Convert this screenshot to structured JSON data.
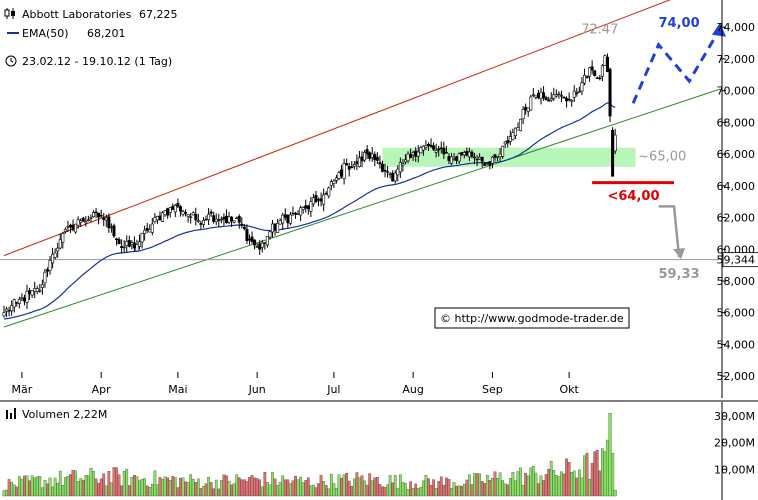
{
  "header": {
    "instrument_name": "Abbott Laboratories",
    "instrument_value": "67,225",
    "ema_label": "EMA(50)",
    "ema_value": "68,201",
    "period": "23.02.12 - 19.10.12 (1 Tag)"
  },
  "volume_panel": {
    "label": "Volumen 2,22M",
    "ticks": [
      {
        "label": "30,00M",
        "value": 30
      },
      {
        "label": "20,00M",
        "value": 20
      },
      {
        "label": "10,00M",
        "value": 10
      }
    ]
  },
  "watermark": "© http://www.godmode-trader.de",
  "annotations": {
    "high_label": "72.47",
    "target_label": "74,00",
    "support_label": "~65,00",
    "trigger_label": "<64,00",
    "downside_target": "59,33",
    "last_price_tag": "59,344"
  },
  "colors": {
    "up_candle": "#ffffff",
    "down_candle": "#000000",
    "ema": "#1a2ea0",
    "upper_channel": "#cc2200",
    "lower_channel": "#2a8a2a",
    "support_zone": "#b8f5b8",
    "volume_up": "#88e060",
    "volume_down": "#e07070",
    "target_arrow": "#1f3fe0",
    "trigger_line": "#e00000",
    "downside_arrow": "#999999"
  },
  "chart_data": {
    "type": "candlestick",
    "y_ticks": [
      {
        "label": "52,000",
        "value": 52
      },
      {
        "label": "54,000",
        "value": 54
      },
      {
        "label": "56,000",
        "value": 56
      },
      {
        "label": "58,000",
        "value": 58
      },
      {
        "label": "60,000",
        "value": 60
      },
      {
        "label": "62,000",
        "value": 62
      },
      {
        "label": "64,000",
        "value": 64
      },
      {
        "label": "66,000",
        "value": 66
      },
      {
        "label": "68,000",
        "value": 68
      },
      {
        "label": "70,000",
        "value": 70
      },
      {
        "label": "72,000",
        "value": 72
      },
      {
        "label": "74,000",
        "value": 74
      }
    ],
    "ylim": [
      51,
      75.4
    ],
    "x_months": [
      {
        "label": "Mär",
        "day": 7
      },
      {
        "label": "Apr",
        "day": 38
      },
      {
        "label": "Mai",
        "day": 68
      },
      {
        "label": "Jun",
        "day": 99
      },
      {
        "label": "Jul",
        "day": 129
      },
      {
        "label": "Aug",
        "day": 160
      },
      {
        "label": "Sep",
        "day": 191
      },
      {
        "label": "Okt",
        "day": 221
      }
    ],
    "x_range_days": [
      0,
      239
    ],
    "close_anchors": [
      [
        0,
        56.0
      ],
      [
        5,
        56.6
      ],
      [
        10,
        57.2
      ],
      [
        14,
        57.4
      ],
      [
        18,
        59.3
      ],
      [
        22,
        60.6
      ],
      [
        26,
        61.4
      ],
      [
        30,
        61.8
      ],
      [
        34,
        62.0
      ],
      [
        38,
        62.1
      ],
      [
        42,
        61.4
      ],
      [
        46,
        60.1
      ],
      [
        52,
        60.3
      ],
      [
        56,
        61.2
      ],
      [
        62,
        62.3
      ],
      [
        68,
        62.7
      ],
      [
        72,
        62.2
      ],
      [
        76,
        61.8
      ],
      [
        80,
        62.2
      ],
      [
        86,
        61.9
      ],
      [
        92,
        61.7
      ],
      [
        96,
        60.6
      ],
      [
        100,
        60.0
      ],
      [
        104,
        61.1
      ],
      [
        108,
        61.8
      ],
      [
        114,
        62.2
      ],
      [
        118,
        62.6
      ],
      [
        122,
        63.0
      ],
      [
        126,
        63.5
      ],
      [
        130,
        64.5
      ],
      [
        134,
        65.3
      ],
      [
        138,
        65.4
      ],
      [
        142,
        66.0
      ],
      [
        146,
        65.6
      ],
      [
        150,
        64.9
      ],
      [
        152,
        64.3
      ],
      [
        156,
        65.4
      ],
      [
        160,
        66.1
      ],
      [
        164,
        66.5
      ],
      [
        168,
        66.3
      ],
      [
        172,
        66.0
      ],
      [
        176,
        65.7
      ],
      [
        180,
        66.1
      ],
      [
        186,
        65.8
      ],
      [
        190,
        65.3
      ],
      [
        194,
        66.0
      ],
      [
        198,
        67.1
      ],
      [
        202,
        68.2
      ],
      [
        206,
        69.6
      ],
      [
        210,
        69.9
      ],
      [
        214,
        69.5
      ],
      [
        218,
        69.7
      ],
      [
        222,
        69.4
      ],
      [
        226,
        70.5
      ],
      [
        230,
        71.3
      ],
      [
        233,
        70.8
      ],
      [
        235,
        72.2
      ],
      [
        236,
        71.2
      ],
      [
        237,
        68.4
      ]
    ],
    "last_candles": [
      {
        "day": 238,
        "open": 67.5,
        "high": 67.7,
        "low": 64.6,
        "close": 64.6
      },
      {
        "day": 239,
        "open": 66.2,
        "high": 67.6,
        "low": 66.0,
        "close": 67.2
      }
    ],
    "ema_start": 55.6,
    "ema_period": 50,
    "upper_channel": {
      "day_start": 0,
      "value_start": 59.6,
      "day_end": 239,
      "value_end": 74.4
    },
    "lower_channel": {
      "day_start": 0,
      "value_start": 55.1,
      "day_end": 239,
      "value_end": 67.9
    },
    "support_zone": {
      "day_start": 148,
      "day_end": 247,
      "low": 65.2,
      "high": 66.4
    },
    "trigger_line": {
      "day_start": 230,
      "day_end": 262,
      "value": 64.2
    },
    "target_path": [
      [
        246,
        69.2
      ],
      [
        256,
        72.9
      ],
      [
        268,
        70.6
      ],
      [
        280,
        73.9
      ]
    ],
    "downside_path": [
      [
        256,
        62.7
      ],
      [
        262,
        62.7
      ],
      [
        264,
        59.5
      ]
    ],
    "last_price": 59.344,
    "volume_anchors": [
      [
        0,
        4
      ],
      [
        20,
        6
      ],
      [
        40,
        7
      ],
      [
        60,
        6
      ],
      [
        80,
        5
      ],
      [
        100,
        6
      ],
      [
        120,
        5
      ],
      [
        140,
        6
      ],
      [
        160,
        5
      ],
      [
        180,
        5
      ],
      [
        200,
        7
      ],
      [
        220,
        9
      ],
      [
        235,
        12
      ]
    ],
    "volume_spikes": [
      {
        "day": 236,
        "value": 21
      },
      {
        "day": 237,
        "value": 31
      },
      {
        "day": 238,
        "value": 16
      },
      {
        "day": 239,
        "value": 2.2
      }
    ]
  }
}
